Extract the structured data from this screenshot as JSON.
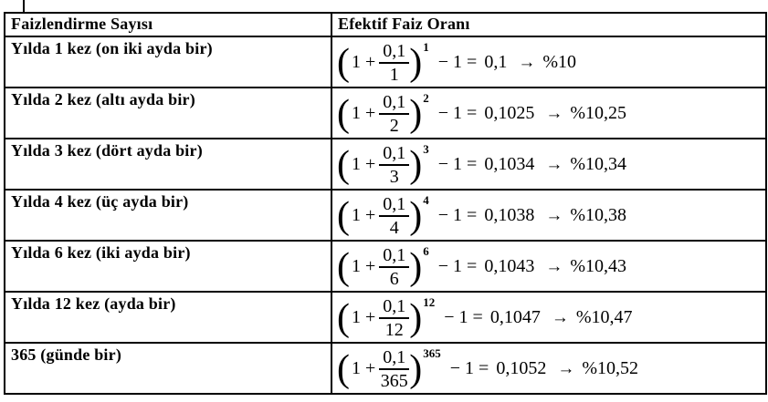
{
  "table": {
    "headers": {
      "left": "Faizlendirme Sayısı",
      "right": "Efektif Faiz Oranı"
    },
    "formula_parts": {
      "open_paren": "(",
      "one_plus": "1 +",
      "close_paren": ")",
      "minus_one_equals": "− 1 =",
      "arrow": "→"
    },
    "rows": [
      {
        "label": "Yılda 1 kez (on iki ayda bir)",
        "numerator": "0,1",
        "denominator": "1",
        "exponent": "1",
        "result": "0,1",
        "percent": "%10"
      },
      {
        "label": "Yılda 2 kez (altı ayda bir)",
        "numerator": "0,1",
        "denominator": "2",
        "exponent": "2",
        "result": "0,1025",
        "percent": "%10,25"
      },
      {
        "label": "Yılda 3 kez (dört ayda bir)",
        "numerator": "0,1",
        "denominator": "3",
        "exponent": "3",
        "result": "0,1034",
        "percent": "%10,34"
      },
      {
        "label": "Yılda 4 kez (üç ayda bir)",
        "numerator": "0,1",
        "denominator": "4",
        "exponent": "4",
        "result": "0,1038",
        "percent": "%10,38"
      },
      {
        "label": "Yılda 6 kez (iki ayda bir)",
        "numerator": "0,1",
        "denominator": "6",
        "exponent": "6",
        "result": "0,1043",
        "percent": "%10,43"
      },
      {
        "label": "Yılda 12 kez (ayda bir)",
        "numerator": "0,1",
        "denominator": "12",
        "exponent": "12",
        "result": "0,1047",
        "percent": "%10,47"
      },
      {
        "label": "365 (günde bir)",
        "numerator": "0,1",
        "denominator": "365",
        "exponent": "365",
        "result": "0,1052",
        "percent": "%10,52"
      }
    ]
  }
}
